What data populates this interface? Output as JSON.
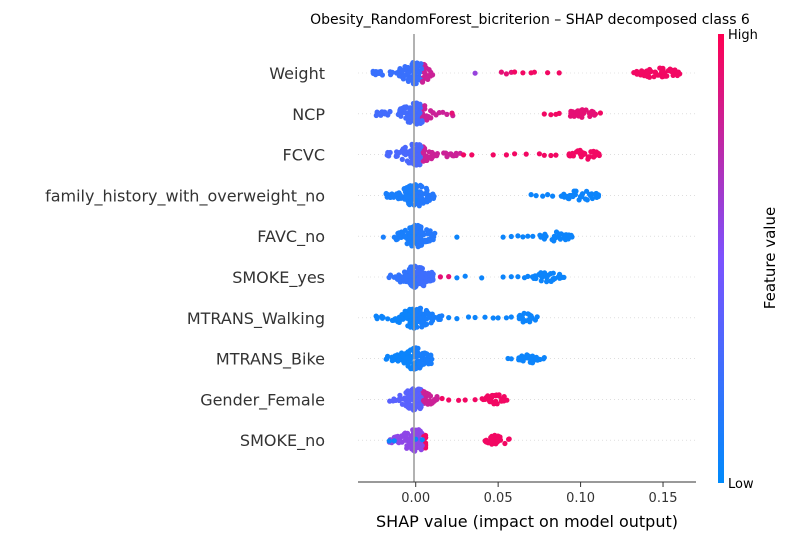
{
  "chart_data": {
    "type": "scatter",
    "subtype": "shap-beeswarm",
    "title": "Obesity_RandomForest_bicriterion – SHAP decomposed class 6",
    "xlabel": "SHAP value (impact on model output)",
    "xlim": [
      -0.035,
      0.17
    ],
    "xticks": [
      0.0,
      0.05,
      0.1,
      0.15
    ],
    "xtick_labels": [
      "0.00",
      "0.05",
      "0.10",
      "0.15"
    ],
    "grid": false,
    "colorbar": {
      "title": "Feature value",
      "high_label": "High",
      "low_label": "Low",
      "low_color": "#008afb",
      "mid_color": "#7c52ff",
      "high_color": "#ff0052"
    },
    "features": [
      {
        "name": "Weight",
        "dense": [
          -0.026,
          0.012,
          0.38
        ],
        "extra": [
          [
            0.036,
            0.6
          ],
          [
            0.052,
            0.9
          ],
          [
            0.055,
            0.9
          ],
          [
            0.058,
            0.9
          ],
          [
            0.06,
            0.95
          ],
          [
            0.065,
            0.95
          ],
          [
            0.07,
            0.95
          ],
          [
            0.072,
            0.95
          ],
          [
            0.08,
            0.95
          ],
          [
            0.087,
            0.95
          ]
        ],
        "cluster": [
          0.132,
          0.162,
          0.95,
          45
        ]
      },
      {
        "name": "NCP",
        "dense": [
          -0.024,
          0.024,
          0.45
        ],
        "extra": [
          [
            0.022,
            0.9
          ],
          [
            0.078,
            0.95
          ],
          [
            0.082,
            0.95
          ],
          [
            0.085,
            0.95
          ],
          [
            0.087,
            0.95
          ],
          [
            0.109,
            0.95
          ],
          [
            0.112,
            0.95
          ]
        ],
        "cluster": [
          0.091,
          0.109,
          0.9,
          30
        ]
      },
      {
        "name": "FCVC",
        "dense": [
          -0.018,
          0.027,
          0.5
        ],
        "extra": [
          [
            0.029,
            0.95
          ],
          [
            0.034,
            0.95
          ],
          [
            0.047,
            0.95
          ],
          [
            0.055,
            0.95
          ],
          [
            0.06,
            0.95
          ],
          [
            0.067,
            0.95
          ],
          [
            0.075,
            0.95
          ],
          [
            0.078,
            0.95
          ],
          [
            0.082,
            0.95
          ],
          [
            0.085,
            0.95
          ]
        ],
        "cluster": [
          0.093,
          0.112,
          0.95,
          35
        ]
      },
      {
        "name": "family_history_with_overweight_no",
        "dense": [
          -0.018,
          0.012,
          0.1
        ],
        "extra": [
          [
            0.07,
            0.05
          ],
          [
            0.073,
            0.05
          ],
          [
            0.077,
            0.05
          ],
          [
            0.08,
            0.05
          ],
          [
            0.083,
            0.05
          ]
        ],
        "cluster": [
          0.088,
          0.112,
          0.05,
          35
        ]
      },
      {
        "name": "FAVC_no",
        "dense": [
          -0.02,
          0.012,
          0.1
        ],
        "extra": [
          [
            0.025,
            0.05
          ],
          [
            0.053,
            0.05
          ],
          [
            0.058,
            0.05
          ],
          [
            0.062,
            0.05
          ],
          [
            0.065,
            0.05
          ],
          [
            0.068,
            0.05
          ],
          [
            0.071,
            0.05
          ],
          [
            0.087,
            0.05
          ],
          [
            0.09,
            0.05
          ]
        ],
        "cluster": [
          0.075,
          0.095,
          0.05,
          30
        ]
      },
      {
        "name": "SMOKE_yes",
        "dense": [
          -0.018,
          0.012,
          0.2
        ],
        "extra": [
          [
            0.015,
            0.9
          ],
          [
            0.02,
            0.9
          ],
          [
            0.025,
            0.05
          ],
          [
            0.03,
            0.05
          ],
          [
            0.04,
            0.05
          ],
          [
            0.053,
            0.05
          ],
          [
            0.058,
            0.05
          ],
          [
            0.062,
            0.05
          ],
          [
            0.066,
            0.05
          ],
          [
            0.068,
            0.05
          ]
        ],
        "cluster": [
          0.07,
          0.09,
          0.05,
          30
        ]
      },
      {
        "name": "MTRANS_Walking",
        "dense": [
          -0.026,
          0.018,
          0.05
        ],
        "extra": [
          [
            0.02,
            0.05
          ],
          [
            0.025,
            0.05
          ],
          [
            0.032,
            0.05
          ],
          [
            0.036,
            0.05
          ],
          [
            0.042,
            0.05
          ],
          [
            0.047,
            0.05
          ],
          [
            0.05,
            0.05
          ],
          [
            0.055,
            0.05
          ],
          [
            0.058,
            0.05
          ]
        ],
        "cluster": [
          0.062,
          0.074,
          0.05,
          22
        ]
      },
      {
        "name": "MTRANS_Bike",
        "dense": [
          -0.018,
          0.01,
          0.05
        ],
        "extra": [
          [
            0.056,
            0.05
          ],
          [
            0.058,
            0.05
          ],
          [
            0.078,
            0.05
          ]
        ],
        "cluster": [
          0.062,
          0.078,
          0.05,
          28
        ]
      },
      {
        "name": "Gender_Female",
        "dense": [
          -0.016,
          0.013,
          0.6
        ],
        "extra": [
          [
            0.016,
            0.95
          ],
          [
            0.02,
            0.95
          ],
          [
            0.026,
            0.95
          ],
          [
            0.03,
            0.95
          ],
          [
            0.036,
            0.95
          ],
          [
            0.042,
            0.95
          ]
        ],
        "cluster": [
          0.04,
          0.056,
          0.95,
          28
        ]
      },
      {
        "name": "SMOKE_no",
        "dense": [
          -0.016,
          0.006,
          0.95
        ],
        "extra": [
          [
            -0.016,
            0.05
          ],
          [
            -0.013,
            0.05
          ],
          [
            0.0,
            0.05
          ],
          [
            0.004,
            0.05
          ]
        ],
        "cluster": [
          0.042,
          0.057,
          0.95,
          30
        ]
      }
    ]
  }
}
